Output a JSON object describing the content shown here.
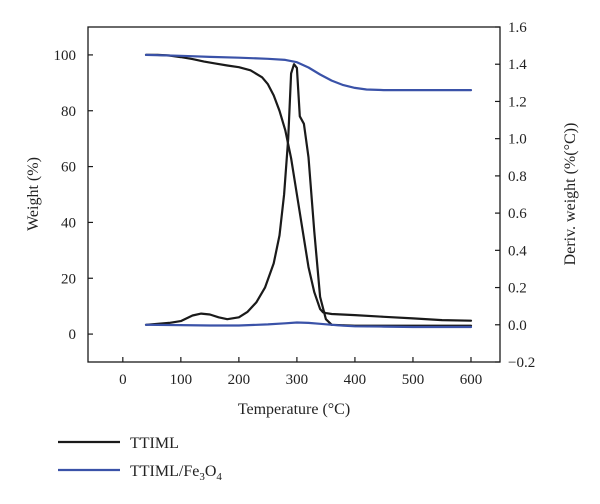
{
  "chart_data": {
    "type": "line",
    "xlabel": "Temperature (°C)",
    "ylabel_left": "Weight (%)",
    "ylabel_right": "Deriv. weight (%(°C))",
    "xlim": [
      -60,
      650
    ],
    "ylim_left": [
      -10,
      110
    ],
    "ylim_right": [
      -0.2,
      1.6
    ],
    "x_ticks": [
      0,
      100,
      200,
      300,
      400,
      500,
      600
    ],
    "y_left_ticks": [
      0,
      20,
      40,
      60,
      80,
      100
    ],
    "y_right_ticks": [
      "−0.2",
      "0.0",
      "0.2",
      "0.4",
      "0.6",
      "0.8",
      "1.0",
      "1.2",
      "1.4",
      "1.6"
    ],
    "grid": false,
    "legend_position": "bottom-left",
    "series": [
      {
        "name": "TTIML",
        "color": "#1a1a1a",
        "kind": "weight",
        "axis": "left",
        "x": [
          40,
          60,
          80,
          100,
          120,
          140,
          160,
          180,
          200,
          220,
          240,
          250,
          260,
          270,
          280,
          290,
          300,
          310,
          320,
          330,
          340,
          345,
          350,
          360,
          400,
          450,
          500,
          550,
          600
        ],
        "y": [
          100,
          100,
          99.8,
          99.2,
          98.5,
          97.6,
          96.9,
          96.2,
          95.6,
          94.5,
          92.0,
          89.5,
          85.5,
          80.0,
          73.0,
          63.0,
          50.0,
          37.0,
          24.0,
          15.0,
          9.0,
          7.8,
          7.5,
          7.2,
          6.8,
          6.2,
          5.6,
          5.0,
          4.8
        ]
      },
      {
        "name": "TTIML",
        "color": "#1a1a1a",
        "kind": "derivative",
        "axis": "right",
        "x": [
          40,
          60,
          80,
          100,
          120,
          135,
          150,
          165,
          180,
          200,
          215,
          230,
          245,
          260,
          270,
          278,
          285,
          290,
          295,
          300,
          305,
          312,
          320,
          330,
          340,
          350,
          360,
          400,
          450,
          500,
          550,
          600
        ],
        "y": [
          0.0,
          0.005,
          0.01,
          0.02,
          0.05,
          0.06,
          0.055,
          0.04,
          0.03,
          0.04,
          0.07,
          0.12,
          0.2,
          0.33,
          0.48,
          0.7,
          1.0,
          1.35,
          1.4,
          1.38,
          1.12,
          1.08,
          0.9,
          0.5,
          0.15,
          0.03,
          0.0,
          -0.005,
          -0.005,
          -0.005,
          -0.005,
          -0.005
        ]
      },
      {
        "name": "TTIML/Fe3O4",
        "color": "#3a52a8",
        "kind": "weight",
        "axis": "left",
        "x": [
          40,
          100,
          150,
          200,
          250,
          280,
          300,
          320,
          340,
          360,
          380,
          400,
          420,
          450,
          500,
          550,
          600
        ],
        "y": [
          100,
          99.7,
          99.3,
          99.0,
          98.6,
          98.2,
          97.4,
          95.5,
          93.0,
          90.8,
          89.2,
          88.2,
          87.6,
          87.4,
          87.4,
          87.4,
          87.4
        ]
      },
      {
        "name": "TTIML/Fe3O4",
        "color": "#3a52a8",
        "kind": "derivative",
        "axis": "right",
        "x": [
          40,
          100,
          150,
          200,
          250,
          280,
          300,
          320,
          340,
          360,
          380,
          400,
          450,
          500,
          550,
          600
        ],
        "y": [
          0.0,
          -0.002,
          -0.004,
          -0.004,
          0.002,
          0.008,
          0.012,
          0.01,
          0.005,
          0.0,
          -0.005,
          -0.008,
          -0.01,
          -0.012,
          -0.012,
          -0.012
        ]
      }
    ],
    "legend": [
      {
        "label": "TTIML",
        "color": "#1a1a1a"
      },
      {
        "label_main": "TTIML/Fe",
        "sub1": "3",
        "mid": "O",
        "sub2": "4",
        "color": "#3a52a8"
      }
    ]
  }
}
